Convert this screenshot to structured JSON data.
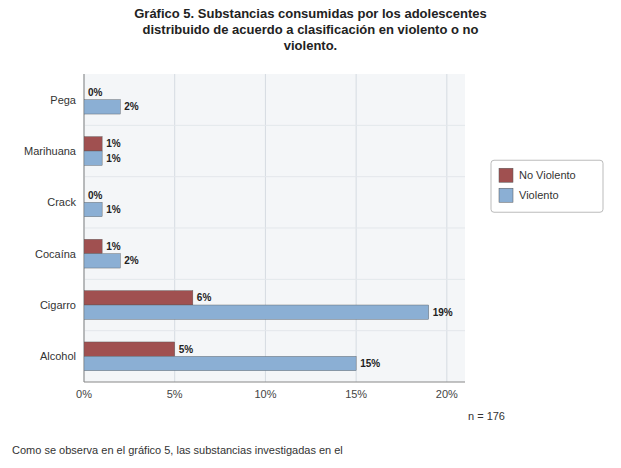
{
  "chart_data": {
    "type": "bar",
    "orientation": "horizontal",
    "title": "Gráfico 5. Substancias consumidas por los adolescentes\ndistribuido de acuerdo a clasificación en violento o no\nviolento.",
    "categories": [
      "Alcohol",
      "Cigarro",
      "Cocaína",
      "Crack",
      "Marihuana",
      "Pega"
    ],
    "series": [
      {
        "name": "No Violento",
        "color": "#A05050",
        "values": [
          5,
          6,
          1,
          0,
          1,
          0
        ],
        "value_labels": [
          "5%",
          "6%",
          "1%",
          "0%",
          "1%",
          "0%"
        ]
      },
      {
        "name": "Violento",
        "color": "#8BAFD4",
        "values": [
          15,
          19,
          2,
          1,
          1,
          2
        ],
        "value_labels": [
          "15%",
          "19%",
          "2%",
          "1%",
          "1%",
          "2%"
        ]
      }
    ],
    "xlim": [
      0,
      21
    ],
    "xticks": [
      {
        "value": 0,
        "label": "0%"
      },
      {
        "value": 5,
        "label": "5%"
      },
      {
        "value": 10,
        "label": "10%"
      },
      {
        "value": 15,
        "label": "15%"
      },
      {
        "value": 20,
        "label": "20%"
      }
    ],
    "grid": true,
    "legend": "right",
    "data_labels": true,
    "annotations": [
      "n = 176",
      "Como se observa en el gráfico 5, las substancias investigadas en el"
    ]
  }
}
